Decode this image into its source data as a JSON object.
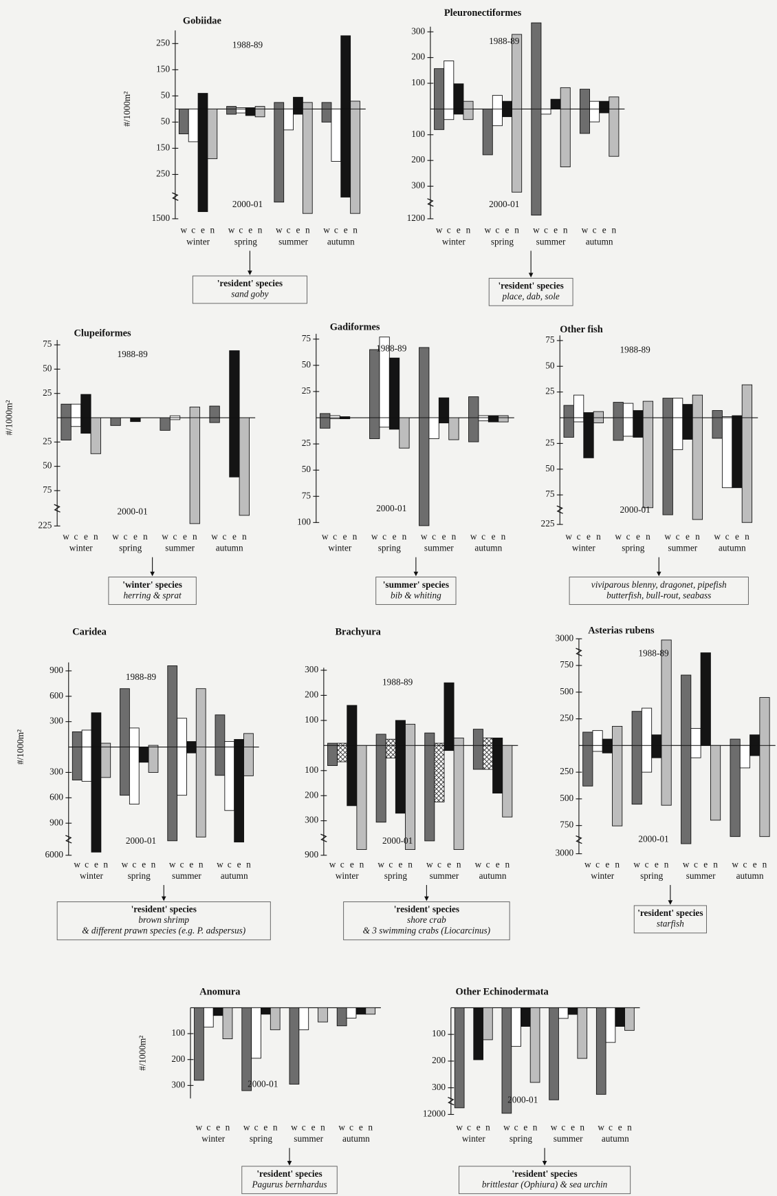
{
  "chart_data": [
    {
      "type": "bar",
      "title": "Gobiidae",
      "ylabel": "#/1000m²",
      "categories": [
        "winter",
        "spring",
        "summer",
        "autumn"
      ],
      "sites": [
        "w",
        "c",
        "e",
        "n"
      ],
      "colors": [
        "#6d6d6d",
        "#ffffff",
        "#141414",
        "#bdbdbd"
      ],
      "series": [
        {
          "name": "1988-89",
          "direction": "up",
          "values": [
            [
              0,
              0,
              60,
              0
            ],
            [
              10,
              5,
              5,
              10
            ],
            [
              25,
              0,
              45,
              25
            ],
            [
              25,
              0,
              280,
              30
            ]
          ]
        },
        {
          "name": "2000-01",
          "direction": "down",
          "values": [
            [
              95,
              125,
              1300,
              190
            ],
            [
              20,
              15,
              25,
              30
            ],
            [
              1030,
              80,
              20,
              1350
            ],
            [
              50,
              200,
              890,
              1350
            ]
          ]
        }
      ],
      "ylim_up": [
        0,
        300
      ],
      "yticks_up": [
        50,
        150,
        250
      ],
      "ylim_down": [
        0,
        1500
      ],
      "yticks_down": [
        50,
        150,
        250,
        1500
      ],
      "broken_down": true,
      "note": {
        "heading": "'resident' species",
        "lines": [
          "sand goby"
        ]
      }
    },
    {
      "type": "bar",
      "title": "Pleuronectiformes",
      "categories": [
        "winter",
        "spring",
        "summer",
        "autumn"
      ],
      "sites": [
        "w",
        "c",
        "e",
        "n"
      ],
      "colors": [
        "#6d6d6d",
        "#ffffff",
        "#141414",
        "#bdbdbd"
      ],
      "series": [
        {
          "name": "1988-89",
          "direction": "up",
          "values": [
            [
              157,
              187,
              98,
              30
            ],
            [
              0,
              53,
              30,
              290
            ],
            [
              335,
              0,
              38,
              83
            ],
            [
              77,
              30,
              30,
              47
            ]
          ]
        },
        {
          "name": "2000-01",
          "direction": "down",
          "values": [
            [
              80,
              41,
              20,
              41
            ],
            [
              178,
              65,
              30,
              465
            ],
            [
              1100,
              20,
              0,
              225
            ],
            [
              95,
              50,
              15,
              184
            ]
          ]
        }
      ],
      "ylim_up": [
        0,
        320
      ],
      "yticks_up": [
        100,
        200,
        300
      ],
      "ylim_down": [
        0,
        1200
      ],
      "yticks_down": [
        100,
        200,
        300,
        1200
      ],
      "broken_down": true,
      "note": {
        "heading": "'resident' species",
        "lines": [
          "place, dab, sole"
        ]
      }
    },
    {
      "type": "bar",
      "title": "Clupeiformes",
      "ylabel": "#/1000m²",
      "categories": [
        "winter",
        "spring",
        "summer",
        "autumn"
      ],
      "sites": [
        "w",
        "c",
        "e",
        "n"
      ],
      "colors": [
        "#6d6d6d",
        "#ffffff",
        "#141414",
        "#bdbdbd"
      ],
      "series": [
        {
          "name": "1988-89",
          "direction": "up",
          "values": [
            [
              14,
              14,
              24,
              0
            ],
            [
              0,
              0,
              0,
              0
            ],
            [
              0,
              2,
              0,
              11
            ],
            [
              12,
              0,
              69,
              0
            ]
          ]
        },
        {
          "name": "2000-01",
          "direction": "down",
          "values": [
            [
              23,
              9,
              16,
              37
            ],
            [
              8,
              0,
              4,
              0
            ],
            [
              13,
              2,
              0,
              215
            ],
            [
              5,
              0,
              61,
              180
            ]
          ]
        }
      ],
      "ylim_up": [
        0,
        80
      ],
      "yticks_up": [
        25,
        50,
        75
      ],
      "ylim_down": [
        0,
        225
      ],
      "yticks_down": [
        25,
        50,
        75,
        225
      ],
      "broken_down": true,
      "note": {
        "heading": "'winter' species",
        "lines": [
          "herring & sprat"
        ]
      }
    },
    {
      "type": "bar",
      "title": "Gadiformes",
      "categories": [
        "winter",
        "spring",
        "summer",
        "autumn"
      ],
      "sites": [
        "w",
        "c",
        "e",
        "n"
      ],
      "colors": [
        "#6d6d6d",
        "#ffffff",
        "#141414",
        "#bdbdbd"
      ],
      "series": [
        {
          "name": "1988-89",
          "direction": "up",
          "values": [
            [
              4,
              2,
              1,
              0
            ],
            [
              65,
              77,
              57,
              0
            ],
            [
              67,
              0,
              19,
              0
            ],
            [
              20,
              2,
              2,
              2
            ]
          ]
        },
        {
          "name": "2000-01",
          "direction": "down",
          "values": [
            [
              10,
              1,
              1,
              0
            ],
            [
              20,
              9,
              11,
              29
            ],
            [
              103,
              20,
              5,
              21
            ],
            [
              23,
              3,
              4,
              4
            ]
          ]
        }
      ],
      "ylim_up": [
        0,
        80
      ],
      "yticks_up": [
        25,
        50,
        75
      ],
      "ylim_down": [
        0,
        100
      ],
      "yticks_down": [
        25,
        50,
        75,
        100
      ],
      "broken_down": false,
      "note": {
        "heading": "'summer' species",
        "lines": [
          "bib & whiting"
        ]
      }
    },
    {
      "type": "bar",
      "title": "Other fish",
      "categories": [
        "winter",
        "spring",
        "summer",
        "autumn"
      ],
      "sites": [
        "w",
        "c",
        "e",
        "n"
      ],
      "colors": [
        "#6d6d6d",
        "#ffffff",
        "#141414",
        "#bdbdbd"
      ],
      "series": [
        {
          "name": "1988-89",
          "direction": "up",
          "values": [
            [
              12,
              22,
              5,
              6
            ],
            [
              15,
              14,
              7,
              16
            ],
            [
              19,
              19,
              13,
              22
            ],
            [
              7,
              1,
              2,
              32
            ]
          ]
        },
        {
          "name": "2000-01",
          "direction": "down",
          "values": [
            [
              19,
              4,
              39,
              5
            ],
            [
              22,
              18,
              19,
              140
            ],
            [
              176,
              31,
              21,
              200
            ],
            [
              20,
              68,
              68,
              215
            ]
          ]
        }
      ],
      "ylim_up": [
        0,
        80
      ],
      "yticks_up": [
        25,
        50,
        75
      ],
      "ylim_down": [
        0,
        225
      ],
      "yticks_down": [
        25,
        50,
        75,
        225
      ],
      "broken_down": true,
      "note": {
        "lines": [
          "viviparous blenny, dragonet, pipefish",
          "butterfish, bull-rout, seabass"
        ]
      }
    },
    {
      "type": "bar",
      "title": "Caridea",
      "ylabel": "#/1000m²",
      "categories": [
        "winter",
        "spring",
        "summer",
        "autumn"
      ],
      "sites": [
        "w",
        "c",
        "e",
        "n"
      ],
      "colors": [
        "#6d6d6d",
        "#ffffff",
        "#141414",
        "#bdbdbd"
      ],
      "series": [
        {
          "name": "1988-89",
          "direction": "up",
          "values": [
            [
              180,
              200,
              405,
              45
            ],
            [
              690,
              225,
              0,
              20
            ],
            [
              960,
              340,
              65,
              690
            ],
            [
              380,
              65,
              90,
              160
            ]
          ]
        },
        {
          "name": "2000-01",
          "direction": "down",
          "values": [
            [
              390,
              405,
              5500,
              360
            ],
            [
              570,
              675,
              180,
              300
            ],
            [
              3700,
              570,
              70,
              3100
            ],
            [
              335,
              750,
              3900,
              340
            ]
          ]
        }
      ],
      "ylim_up": [
        0,
        1000
      ],
      "yticks_up": [
        300,
        600,
        900
      ],
      "ylim_down": [
        0,
        6000
      ],
      "yticks_down": [
        300,
        600,
        900,
        6000
      ],
      "broken_down": true,
      "note": {
        "heading": "'resident' species",
        "lines": [
          "brown shrimp",
          "& different prawn species (e.g. P. adspersus)"
        ]
      }
    },
    {
      "type": "bar",
      "title": "Brachyura",
      "categories": [
        "winter",
        "spring",
        "summer",
        "autumn"
      ],
      "sites": [
        "w",
        "c",
        "e",
        "n"
      ],
      "colors": [
        "#6d6d6d",
        "#ffffff",
        "#141414",
        "#bdbdbd"
      ],
      "hatch": [
        false,
        true,
        false,
        false
      ],
      "series": [
        {
          "name": "1988-89",
          "direction": "up",
          "values": [
            [
              9,
              9,
              160,
              0
            ],
            [
              45,
              25,
              100,
              85
            ],
            [
              50,
              9,
              250,
              30
            ],
            [
              65,
              30,
              30,
              0
            ]
          ]
        },
        {
          "name": "2000-01",
          "direction": "down",
          "values": [
            [
              80,
              65,
              240,
              800
            ],
            [
              325,
              50,
              270,
              800
            ],
            [
              650,
              225,
              20,
              800
            ],
            [
              95,
              95,
              190,
              285
            ]
          ]
        }
      ],
      "ylim_up": [
        0,
        310
      ],
      "yticks_up": [
        100,
        200,
        300
      ],
      "ylim_down": [
        0,
        900
      ],
      "yticks_down": [
        100,
        200,
        300,
        900
      ],
      "broken_down": true,
      "note": {
        "heading": "'resident' species",
        "lines": [
          "shore crab",
          "& 3 swimming crabs (Liocarcinus)"
        ]
      }
    },
    {
      "type": "bar",
      "title": "Asterias rubens",
      "categories": [
        "winter",
        "spring",
        "summer",
        "autumn"
      ],
      "sites": [
        "w",
        "c",
        "e",
        "n"
      ],
      "colors": [
        "#6d6d6d",
        "#ffffff",
        "#141414",
        "#bdbdbd"
      ],
      "series": [
        {
          "name": "1988-89",
          "direction": "up",
          "values": [
            [
              125,
              140,
              60,
              180
            ],
            [
              320,
              350,
              100,
              2900
            ],
            [
              660,
              160,
              1820,
              0
            ],
            [
              60,
              0,
              100,
              450
            ]
          ]
        },
        {
          "name": "2000-01",
          "direction": "down",
          "values": [
            [
              380,
              55,
              70,
              780
            ],
            [
              550,
              250,
              115,
              560
            ],
            [
              2200,
              115,
              0,
              700
            ],
            [
              1630,
              210,
              95,
              1630
            ]
          ]
        }
      ],
      "ylim_up": [
        0,
        3000
      ],
      "yticks_up": [
        250,
        500,
        750,
        3000
      ],
      "broken_up": true,
      "ylim_down": [
        0,
        3000
      ],
      "yticks_down": [
        250,
        500,
        750,
        3000
      ],
      "broken_down": true,
      "note": {
        "heading": "'resident' species",
        "lines": [
          "starfish"
        ]
      }
    },
    {
      "type": "bar",
      "title": "Anomura",
      "ylabel": "#/1000m²",
      "categories": [
        "winter",
        "spring",
        "summer",
        "autumn"
      ],
      "sites": [
        "w",
        "c",
        "e",
        "n"
      ],
      "colors": [
        "#6d6d6d",
        "#ffffff",
        "#141414",
        "#bdbdbd"
      ],
      "series": [
        {
          "name": "2000-01",
          "direction": "down",
          "values": [
            [
              280,
              75,
              30,
              120
            ],
            [
              320,
              195,
              25,
              85
            ],
            [
              295,
              85,
              0,
              55
            ],
            [
              70,
              40,
              25,
              25
            ]
          ]
        }
      ],
      "ylim_down": [
        0,
        350
      ],
      "yticks_down": [
        100,
        200,
        300
      ],
      "broken_down": false,
      "note": {
        "heading": "'resident' species",
        "lines": [
          "Pagurus bernhardus"
        ]
      }
    },
    {
      "type": "bar",
      "title": "Other Echinodermata",
      "categories": [
        "winter",
        "spring",
        "summer",
        "autumn"
      ],
      "sites": [
        "w",
        "c",
        "e",
        "n"
      ],
      "colors": [
        "#6d6d6d",
        "#ffffff",
        "#141414",
        "#bdbdbd"
      ],
      "series": [
        {
          "name": "2000-01",
          "direction": "down",
          "values": [
            [
              9100,
              0,
              195,
              120
            ],
            [
              11500,
              145,
              70,
              280
            ],
            [
              5600,
              40,
              25,
              190
            ],
            [
              3200,
              130,
              70,
              85
            ]
          ]
        }
      ],
      "ylim_down": [
        0,
        12000
      ],
      "yticks_down": [
        100,
        200,
        300,
        12000
      ],
      "broken_down": true,
      "note": {
        "heading": "'resident' species",
        "lines": [
          "brittlestar (Ophiura) & sea urchin"
        ]
      }
    }
  ]
}
